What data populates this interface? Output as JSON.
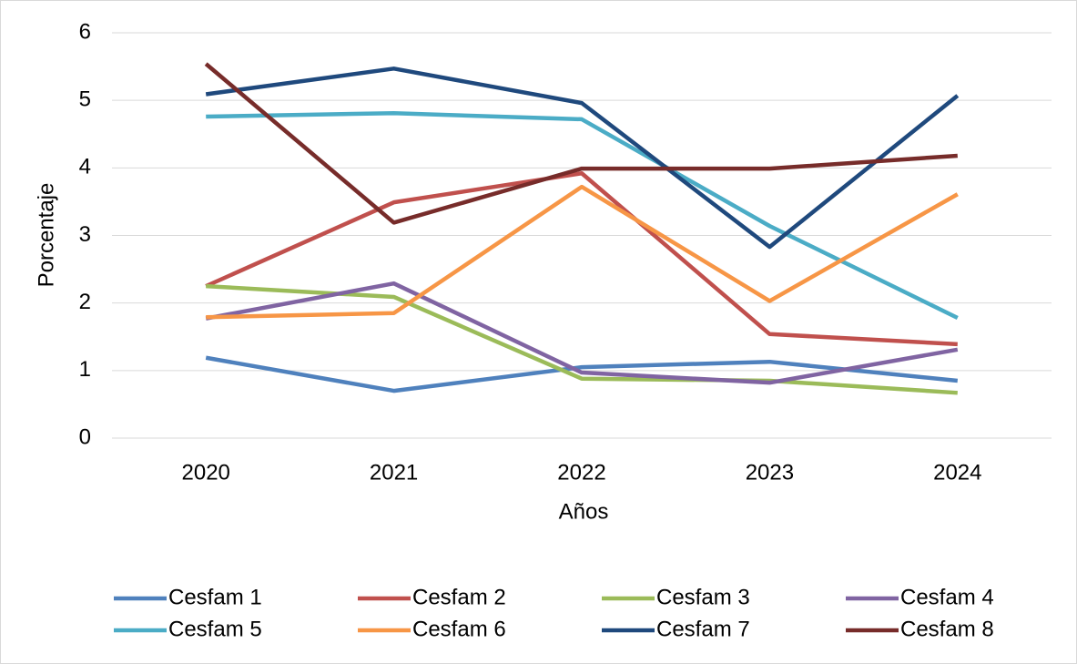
{
  "chart_data": {
    "type": "line",
    "x_label": "Años",
    "y_label": "Porcentaje",
    "categories": [
      "2020",
      "2021",
      "2022",
      "2023",
      "2024"
    ],
    "ylim": [
      0,
      6
    ],
    "yticks": [
      0,
      1,
      2,
      3,
      4,
      5,
      6
    ],
    "grid": true,
    "series": [
      {
        "name": "Cesfam 1",
        "color": "#4f81bd",
        "values": [
          1.19,
          0.7,
          1.05,
          1.13,
          0.85
        ]
      },
      {
        "name": "Cesfam 2",
        "color": "#c0504d",
        "values": [
          2.25,
          3.49,
          3.92,
          1.54,
          1.39
        ]
      },
      {
        "name": "Cesfam 3",
        "color": "#9bbb59",
        "values": [
          2.25,
          2.09,
          0.88,
          0.85,
          0.67
        ]
      },
      {
        "name": "Cesfam 4",
        "color": "#8064a2",
        "values": [
          1.77,
          2.29,
          0.97,
          0.82,
          1.31
        ]
      },
      {
        "name": "Cesfam 5",
        "color": "#4bacc6",
        "values": [
          4.76,
          4.81,
          4.72,
          3.14,
          1.78
        ]
      },
      {
        "name": "Cesfam 6",
        "color": "#f79646",
        "values": [
          1.79,
          1.85,
          3.72,
          2.03,
          3.61
        ]
      },
      {
        "name": "Cesfam 7",
        "color": "#1f497d",
        "values": [
          5.09,
          5.47,
          4.96,
          2.83,
          5.07
        ]
      },
      {
        "name": "Cesfam 8",
        "color": "#772c2a",
        "values": [
          5.54,
          3.19,
          3.99,
          3.99,
          4.18
        ]
      }
    ]
  }
}
